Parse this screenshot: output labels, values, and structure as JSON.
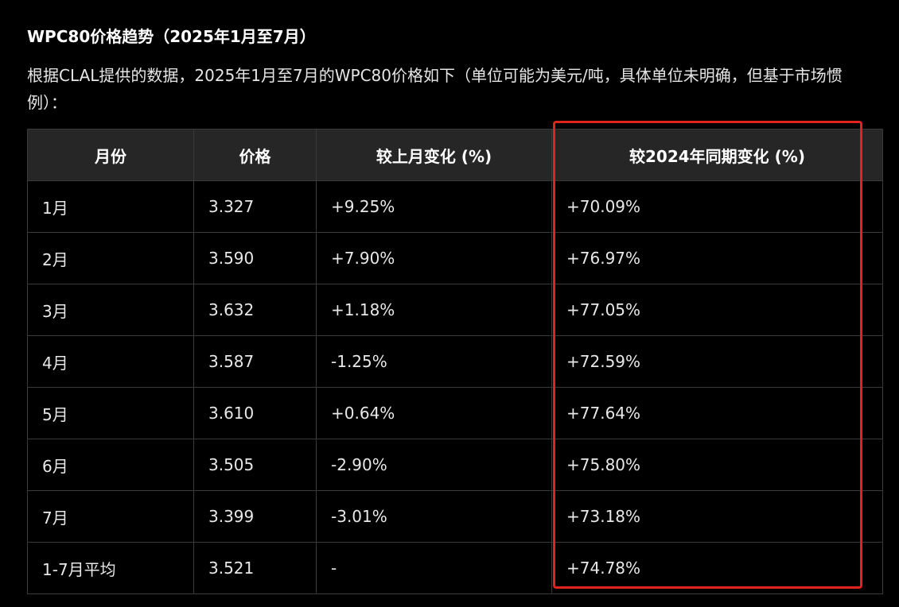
{
  "heading": "WPC80价格趋势（2025年1月至7月）",
  "intro": "根据CLAL提供的数据，2025年1月至7月的WPC80价格如下（单位可能为美元/吨，具体单位未明确，但基于市场惯例）：",
  "table": {
    "headers": [
      "月份",
      "价格",
      "较上月变化 (%)",
      "较2024年同期变化 (%)"
    ],
    "rows": [
      [
        "1月",
        "3.327",
        "+9.25%",
        "+70.09%"
      ],
      [
        "2月",
        "3.590",
        "+7.90%",
        "+76.97%"
      ],
      [
        "3月",
        "3.632",
        "+1.18%",
        "+77.05%"
      ],
      [
        "4月",
        "3.587",
        "-1.25%",
        "+72.59%"
      ],
      [
        "5月",
        "3.610",
        "+0.64%",
        "+77.64%"
      ],
      [
        "6月",
        "3.505",
        "-2.90%",
        "+75.80%"
      ],
      [
        "7月",
        "3.399",
        "-3.01%",
        "+73.18%"
      ],
      [
        "1-7月平均",
        "3.521",
        "-",
        "+74.78%"
      ]
    ]
  },
  "colors": {
    "background": "#000000",
    "header_bg": "#262626",
    "border": "#3a3a3a",
    "highlight": "#e0231c"
  }
}
